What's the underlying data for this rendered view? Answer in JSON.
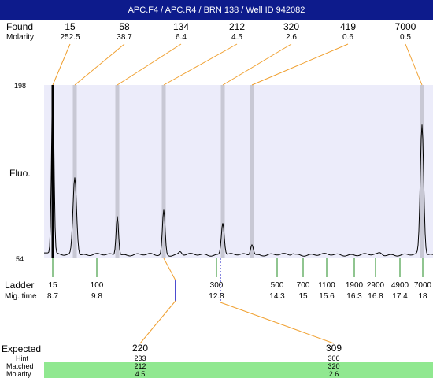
{
  "title": "APC.F4 / APC.R4 / BRN 138 / Well ID 942082",
  "found": {
    "label": "Found",
    "molarity_label": "Molarity",
    "peaks": [
      {
        "size": "15",
        "molarity": "252.5"
      },
      {
        "size": "58",
        "molarity": "38.7"
      },
      {
        "size": "134",
        "molarity": "6.4"
      },
      {
        "size": "212",
        "molarity": "4.5"
      },
      {
        "size": "320",
        "molarity": "2.6"
      },
      {
        "size": "419",
        "molarity": "0.6"
      },
      {
        "size": "7000",
        "molarity": "0.5"
      }
    ]
  },
  "ladder": {
    "label": "Ladder",
    "mig_label": "Mig. time",
    "bands": [
      {
        "size": "15",
        "time": "8.7"
      },
      {
        "size": "100",
        "time": "9.8"
      },
      {
        "size": "300",
        "time": "12.8"
      },
      {
        "size": "500",
        "time": "14.3"
      },
      {
        "size": "700",
        "time": "15"
      },
      {
        "size": "1100",
        "time": "15.6"
      },
      {
        "size": "1900",
        "time": "16.3"
      },
      {
        "size": "2900",
        "time": "16.8"
      },
      {
        "size": "4900",
        "time": "17.4"
      },
      {
        "size": "7000",
        "time": "18"
      }
    ]
  },
  "expected": {
    "label": "Expected",
    "hint_label": "Hint",
    "matched_label": "Matched",
    "molarity_label": "Molarity",
    "items": [
      {
        "size": "220",
        "hint": "233",
        "matched": "212",
        "molarity": "4.5"
      },
      {
        "size": "309",
        "hint": "306",
        "matched": "320",
        "molarity": "2.6"
      }
    ]
  },
  "colors": {
    "title_bg": "#0d1b8c",
    "plot_bg": "#ececfa",
    "band": "#c8c8d4",
    "connector": "#f0a030",
    "ladder_tick": "#228b22",
    "matched_bg": "#90e890",
    "marker": "#1010c0"
  },
  "chart_data": {
    "type": "line",
    "xlabel": "",
    "ylabel": "Fluo.",
    "ylim": [
      54,
      198
    ],
    "x_unit": "bp",
    "x_ticks": [
      "15",
      "100",
      "300",
      "500",
      "700",
      "1100",
      "1900",
      "2900",
      "4900",
      "7000"
    ],
    "y_ticks": [
      "54",
      "198"
    ],
    "peaks": [
      {
        "x": 15,
        "y": 198
      },
      {
        "x": 58,
        "y": 122
      },
      {
        "x": 134,
        "y": 90
      },
      {
        "x": 212,
        "y": 94
      },
      {
        "x": 320,
        "y": 84
      },
      {
        "x": 419,
        "y": 66
      },
      {
        "x": 7000,
        "y": 165
      }
    ],
    "baseline": 57
  }
}
